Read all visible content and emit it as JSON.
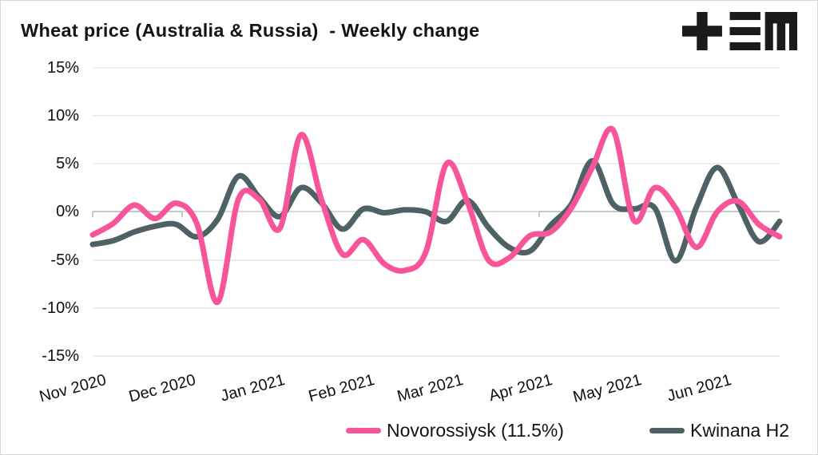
{
  "title": "Wheat price (Australia & Russia)  - Weekly change",
  "logo": {
    "name": "tem-logo",
    "color": "#1b1b1b"
  },
  "colors": {
    "background": "#ffffff",
    "frame": "#d6d6d6",
    "grid": "#ececec",
    "zero_line": "#d9d9d9",
    "zero_line_dark": "#c3c7c5",
    "text": "#111111",
    "novorossiysk": "#f7549a",
    "kwinana": "#4e6165"
  },
  "chart_data": {
    "type": "line",
    "title": "Wheat price (Australia & Russia) - Weekly change",
    "frequency": "weekly",
    "grid": "horizontal",
    "legend_position": "bottom",
    "x_tick_labels": [
      "Nov 2020",
      "Dec 2020",
      "Jan 2021",
      "Feb 2021",
      "Mar 2021",
      "Apr 2021",
      "May 2021",
      "Jun 2021"
    ],
    "x_tick_rotation_deg": -15,
    "y_tick_labels": [
      "15%",
      "10%",
      "5%",
      "0%",
      "-5%",
      "-10%",
      "-15%"
    ],
    "y_tick_values": [
      15,
      10,
      5,
      0,
      -5,
      -10,
      -15
    ],
    "y_unit": "%",
    "y_range": [
      -17.5,
      17.5
    ],
    "series": [
      {
        "name": "Novorossiysk (11.5%)",
        "color": "#f7549a",
        "values": [
          -2.4,
          -1.2,
          0.7,
          -0.7,
          0.9,
          -1.2,
          -9.4,
          1.3,
          1.3,
          -1.7,
          8.0,
          1.2,
          -4.4,
          -2.9,
          -5.4,
          -6.1,
          -4.2,
          5.0,
          1.0,
          -5.0,
          -4.8,
          -2.5,
          -2.1,
          0.4,
          4.6,
          8.5,
          -0.9,
          2.5,
          0.4,
          -3.7,
          0.0,
          1.1,
          -1.3,
          -2.6
        ]
      },
      {
        "name": "Kwinana H2",
        "color": "#4e6165",
        "values": [
          -3.4,
          -3.0,
          -2.1,
          -1.5,
          -1.3,
          -2.6,
          -0.8,
          3.7,
          1.5,
          -0.5,
          2.5,
          0.9,
          -1.8,
          0.3,
          -0.1,
          0.2,
          0.0,
          -1.0,
          1.2,
          -1.6,
          -3.7,
          -4.1,
          -1.4,
          0.8,
          5.3,
          0.8,
          0.3,
          0.4,
          -5.1,
          0.5,
          4.6,
          0.8,
          -3.1,
          -1.0
        ]
      }
    ]
  }
}
